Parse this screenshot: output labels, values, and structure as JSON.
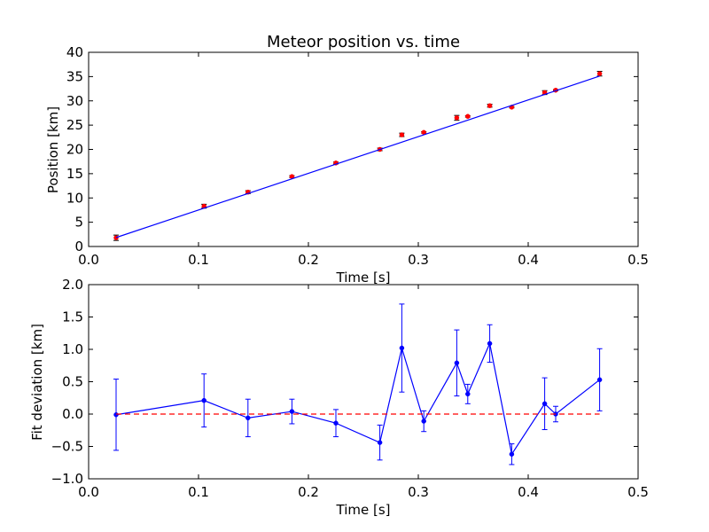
{
  "chart_data": [
    {
      "type": "scatter",
      "title": "Meteor position vs. time",
      "xlabel": "Time [s]",
      "ylabel": "Position [km]",
      "xlim": [
        0,
        0.5
      ],
      "ylim": [
        0,
        40
      ],
      "xticks": [
        0.0,
        0.1,
        0.2,
        0.3,
        0.4,
        0.5
      ],
      "xtick_labels": [
        "0.0",
        "0.1",
        "0.2",
        "0.3",
        "0.4",
        "0.5"
      ],
      "yticks": [
        0,
        5,
        10,
        15,
        20,
        25,
        30,
        35,
        40
      ],
      "ytick_labels": [
        "0",
        "5",
        "10",
        "15",
        "20",
        "25",
        "30",
        "35",
        "40"
      ],
      "grid": false,
      "series": [
        {
          "kind": "errorbar-points",
          "color": "#ff0000",
          "x": [
            0.025,
            0.105,
            0.145,
            0.185,
            0.225,
            0.265,
            0.285,
            0.305,
            0.335,
            0.345,
            0.365,
            0.385,
            0.415,
            0.425,
            0.465
          ],
          "y": [
            1.8,
            8.3,
            11.2,
            14.4,
            17.2,
            20.0,
            23.0,
            23.5,
            26.5,
            26.8,
            29.0,
            28.7,
            31.7,
            32.2,
            35.6
          ],
          "yerr": [
            0.55,
            0.4,
            0.3,
            0.2,
            0.2,
            0.27,
            0.35,
            0.15,
            0.5,
            0.15,
            0.3,
            0.15,
            0.4,
            0.12,
            0.48
          ]
        },
        {
          "kind": "line",
          "color": "#0000ff",
          "x": [
            0.025,
            0.465
          ],
          "y": [
            1.85,
            35.1
          ]
        }
      ]
    },
    {
      "type": "line",
      "title": "",
      "xlabel": "Time [s]",
      "ylabel": "Fit deviation [km]",
      "xlim": [
        0,
        0.5
      ],
      "ylim": [
        -1.0,
        2.0
      ],
      "xticks": [
        0.0,
        0.1,
        0.2,
        0.3,
        0.4,
        0.5
      ],
      "xtick_labels": [
        "0.0",
        "0.1",
        "0.2",
        "0.3",
        "0.4",
        "0.5"
      ],
      "yticks": [
        -1.0,
        -0.5,
        0.0,
        0.5,
        1.0,
        1.5,
        2.0
      ],
      "ytick_labels": [
        "−1.0",
        "−0.5",
        "0.0",
        "0.5",
        "1.0",
        "1.5",
        "2.0"
      ],
      "grid": false,
      "series": [
        {
          "kind": "errorbar-line",
          "color": "#0000ff",
          "x": [
            0.025,
            0.105,
            0.145,
            0.185,
            0.225,
            0.265,
            0.285,
            0.305,
            0.335,
            0.345,
            0.365,
            0.385,
            0.415,
            0.425,
            0.465
          ],
          "y": [
            -0.01,
            0.21,
            -0.06,
            0.04,
            -0.14,
            -0.44,
            1.02,
            -0.11,
            0.79,
            0.31,
            1.09,
            -0.62,
            0.16,
            0.0,
            0.53
          ],
          "yerr": [
            0.55,
            0.41,
            0.29,
            0.19,
            0.21,
            0.27,
            0.68,
            0.16,
            0.51,
            0.15,
            0.29,
            0.16,
            0.4,
            0.12,
            0.48
          ]
        },
        {
          "kind": "dashed-line",
          "color": "#ff0000",
          "x": [
            0.025,
            0.465
          ],
          "y": [
            0,
            0
          ]
        }
      ]
    }
  ]
}
